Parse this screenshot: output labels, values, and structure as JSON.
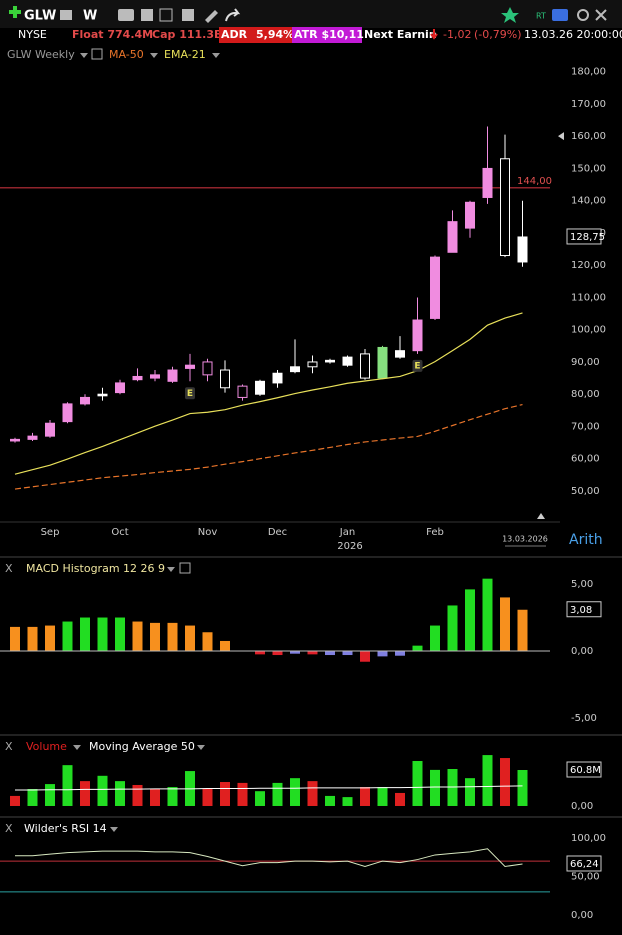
{
  "toolbar": {
    "symbol": "GLW",
    "interval": "W",
    "rt": "RT",
    "panel_close": "X"
  },
  "info_bar": {
    "exchange": "NYSE",
    "float": "Float 774.4M",
    "cap": "Cap 111.3B",
    "adr_label": "ADR",
    "adr_value": "5,94%",
    "atr": "ATR $10,11",
    "next_earnings": "Next Earnin",
    "change": "-1,02",
    "change_pct": "(-0,79%)",
    "datetime": "13.03.26 20:00:00"
  },
  "chart_data": [
    {
      "type": "candlestick",
      "title": "GLW Weekly",
      "categories": [
        null,
        null,
        "Sep",
        null,
        null,
        null,
        "Oct",
        null,
        null,
        null,
        null,
        "Nov",
        null,
        null,
        null,
        "Dec",
        null,
        null,
        null,
        "Jan",
        null,
        null,
        null,
        null,
        "Feb",
        null,
        null,
        null,
        null,
        null
      ],
      "year_label": "2026",
      "last_date": "13.03.2026",
      "scale_label": "Arith",
      "series": [
        {
          "name": "GLW",
          "open": [
            65.5,
            66,
            67,
            71.5,
            77,
            79.5,
            80.5,
            84.5,
            85,
            84,
            88,
            86,
            82,
            79,
            80,
            83.5,
            87,
            88.5,
            90,
            89,
            85,
            85,
            91.5,
            93.5,
            103.5,
            124,
            131.5,
            141,
            153,
            121
          ],
          "high": [
            66.5,
            68,
            72,
            77.5,
            80,
            82,
            84.5,
            88,
            87.5,
            88.5,
            92.5,
            91,
            90.5,
            83,
            84.5,
            87.5,
            97,
            92,
            91,
            92,
            94,
            95,
            98,
            110,
            123,
            137,
            140,
            163,
            160.5,
            140
          ],
          "low": [
            65,
            65.5,
            66.5,
            71,
            76.5,
            78,
            80,
            84,
            84,
            83.5,
            84,
            84,
            80.5,
            78,
            79.5,
            82,
            86.5,
            86.5,
            89.5,
            88.5,
            84.5,
            85,
            91,
            92.5,
            103,
            124,
            128.5,
            139,
            122.5,
            119.5
          ],
          "close": [
            66,
            67,
            71,
            77,
            79,
            80,
            83.5,
            85.5,
            86,
            87.5,
            89,
            90,
            87.5,
            82.5,
            84,
            86.5,
            88.5,
            90,
            90.5,
            91.5,
            92.5,
            94.5,
            93.5,
            103,
            122.5,
            133.5,
            139.5,
            150,
            123,
            128.75
          ],
          "fill_colors": [
            "#f08ce0",
            "#f08ce0",
            "#f08ce0",
            "#f08ce0",
            "#f08ce0",
            "#ffffff",
            "#f08ce0",
            "#f08ce0",
            "#f08ce0",
            "#f08ce0",
            "#f08ce0",
            "#000000",
            "#000000",
            "#000000",
            "#ffffff",
            "#ffffff",
            "#ffffff",
            "#000000",
            "#ffffff",
            "#ffffff",
            "#000000",
            "#86e07f",
            "#ffffff",
            "#f08ce0",
            "#f08ce0",
            "#f08ce0",
            "#f08ce0",
            "#f08ce0",
            "#000000",
            "#ffffff"
          ],
          "edge_colors": [
            "#f08ce0",
            "#f08ce0",
            "#f08ce0",
            "#f08ce0",
            "#f08ce0",
            "#ffffff",
            "#f08ce0",
            "#f08ce0",
            "#f08ce0",
            "#f08ce0",
            "#f08ce0",
            "#f08ce0",
            "#ffffff",
            "#f08ce0",
            "#ffffff",
            "#ffffff",
            "#ffffff",
            "#ffffff",
            "#ffffff",
            "#ffffff",
            "#ffffff",
            "#86e07f",
            "#ffffff",
            "#f08ce0",
            "#f08ce0",
            "#f08ce0",
            "#f08ce0",
            "#f08ce0",
            "#ffffff",
            "#ffffff"
          ]
        },
        {
          "name": "MA-50",
          "color": "#e8742a",
          "dashed": true,
          "values": [
            50.6,
            51.3,
            52,
            52.7,
            53.4,
            54.1,
            54.6,
            55.1,
            55.7,
            56.2,
            56.7,
            57.4,
            58.3,
            59.1,
            60,
            60.9,
            61.8,
            62.6,
            63.5,
            64.4,
            65.2,
            65.8,
            66.4,
            66.9,
            68.5,
            70.3,
            72.1,
            73.8,
            75.5,
            76.8
          ]
        },
        {
          "name": "EMA-21",
          "color": "#e8e05a",
          "dashed": false,
          "values": [
            55.2,
            56.6,
            58,
            59.9,
            61.9,
            63.8,
            65.9,
            68,
            70.1,
            72,
            74,
            74.4,
            75.2,
            76.6,
            77.7,
            78.9,
            80.2,
            81.3,
            82.3,
            83.4,
            84.1,
            84.8,
            85.5,
            87.3,
            90.1,
            93.5,
            97,
            101.4,
            103.6,
            105.2
          ]
        }
      ],
      "ylim": [
        41,
        183
      ],
      "yticks": [
        {
          "value": 180,
          "label": "180,00"
        },
        {
          "value": 170,
          "label": "170,00"
        },
        {
          "value": 160,
          "label": "160,00"
        },
        {
          "value": 150,
          "label": "150,00"
        },
        {
          "value": 140,
          "label": "140,00"
        },
        {
          "value": 130,
          "label": "130,00"
        },
        {
          "value": 120,
          "label": "120,00"
        },
        {
          "value": 110,
          "label": "110,00"
        },
        {
          "value": 100,
          "label": "100,00"
        },
        {
          "value": 90,
          "label": "90,00"
        },
        {
          "value": 80,
          "label": "80,00"
        },
        {
          "value": 70,
          "label": "70,00"
        },
        {
          "value": 60,
          "label": "60,00"
        },
        {
          "value": 50,
          "label": "50,00"
        }
      ],
      "hline": {
        "value": 144,
        "label": "144,00",
        "color": "#c0303a"
      },
      "last_value_label": "128,75",
      "annotations": [
        {
          "text": "E",
          "index": 10
        },
        {
          "text": "E",
          "index": 23
        }
      ]
    },
    {
      "type": "bar",
      "title": "MACD Histogram 12 26 9",
      "values": [
        1.8,
        1.8,
        1.9,
        2.2,
        2.5,
        2.5,
        2.5,
        2.2,
        2.1,
        2.1,
        1.9,
        1.4,
        0.75,
        0.02,
        -0.25,
        -0.3,
        -0.2,
        -0.25,
        -0.3,
        -0.3,
        -0.8,
        -0.4,
        -0.35,
        0.4,
        1.9,
        3.4,
        4.6,
        5.4,
        4.0,
        3.08
      ],
      "colors": [
        "#f7901e",
        "#f7901e",
        "#f7901e",
        "#22dd22",
        "#22dd22",
        "#22dd22",
        "#22dd22",
        "#f7901e",
        "#f7901e",
        "#f7901e",
        "#f7901e",
        "#f7901e",
        "#f7901e",
        "#f7901e",
        "#e0202a",
        "#e0202a",
        "#8080e0",
        "#e0202a",
        "#8080e0",
        "#8080e0",
        "#e0202a",
        "#8080e0",
        "#8080e0",
        "#22dd22",
        "#22dd22",
        "#22dd22",
        "#22dd22",
        "#22dd22",
        "#f7901e",
        "#f7901e"
      ],
      "ylim": [
        -6.12,
        5.45
      ],
      "yticks": [
        {
          "value": 5,
          "label": "5,00"
        },
        {
          "value": 0,
          "label": "0,00"
        },
        {
          "value": -5,
          "label": "-5,00"
        }
      ],
      "last_value_label": "3,08"
    },
    {
      "type": "bar",
      "series": [
        {
          "name": "Volume",
          "color": "#e02020",
          "values": [
            17,
            28.7,
            37,
            69,
            42,
            51,
            42,
            35.5,
            28.7,
            32,
            59,
            28.7,
            40.5,
            39,
            25,
            39,
            47,
            42,
            17,
            15,
            32,
            32,
            22,
            76,
            61,
            62.5,
            47,
            86,
            81,
            60.8
          ],
          "colors": [
            "#e02020",
            "#22dd22",
            "#22dd22",
            "#22dd22",
            "#e02020",
            "#22dd22",
            "#22dd22",
            "#e02020",
            "#e02020",
            "#22dd22",
            "#22dd22",
            "#e02020",
            "#e02020",
            "#e02020",
            "#22dd22",
            "#22dd22",
            "#22dd22",
            "#e02020",
            "#22dd22",
            "#22dd22",
            "#e02020",
            "#22dd22",
            "#e02020",
            "#22dd22",
            "#22dd22",
            "#22dd22",
            "#22dd22",
            "#22dd22",
            "#e02020",
            "#22dd22"
          ]
        },
        {
          "name": "Moving Average 50",
          "color": "#ffffff",
          "values": [
            27,
            27,
            27.5,
            27.5,
            28,
            28,
            28.5,
            28.5,
            29,
            29,
            29,
            29.5,
            29.5,
            29.5,
            30,
            30,
            30,
            30.5,
            30.5,
            30.5,
            30.5,
            31,
            31,
            31.5,
            32,
            32,
            32.5,
            33,
            33.5,
            34
          ]
        }
      ],
      "ylim": [
        -3.4,
        94.6
      ],
      "yticks": [
        {
          "value": 0,
          "label": "0,00"
        }
      ],
      "last_value_label": "60.8M"
    },
    {
      "type": "line",
      "series": [
        {
          "name": "Wilder's RSI 14",
          "color": "#d8e8c0",
          "values": [
            77,
            77,
            79,
            81,
            82,
            83,
            83,
            83,
            82,
            82,
            81,
            76,
            70,
            64,
            68,
            68,
            70,
            70,
            69,
            70,
            63,
            70,
            68,
            72,
            78,
            80,
            82,
            86,
            63,
            66.24
          ]
        }
      ],
      "levels": [
        {
          "value": 70,
          "color": "#c0303a"
        },
        {
          "value": 30,
          "color": "#2aa0a0"
        }
      ],
      "ylim": [
        0,
        100
      ],
      "yticks": [
        {
          "value": 100,
          "label": "100,00"
        },
        {
          "value": 50,
          "label": "50,00"
        },
        {
          "value": 0,
          "label": "0,00"
        }
      ],
      "last_value_label": "66,24"
    }
  ]
}
